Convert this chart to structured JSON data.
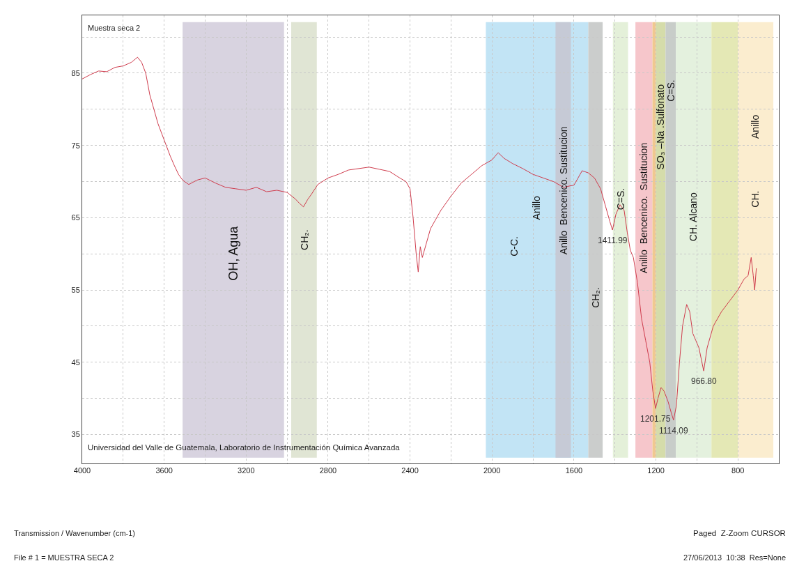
{
  "chart_data": {
    "type": "line",
    "x": [
      4000,
      3960,
      3920,
      3880,
      3840,
      3800,
      3760,
      3730,
      3710,
      3690,
      3670,
      3650,
      3630,
      3610,
      3590,
      3570,
      3550,
      3530,
      3510,
      3480,
      3440,
      3400,
      3350,
      3300,
      3250,
      3200,
      3150,
      3100,
      3050,
      3000,
      2960,
      2940,
      2920,
      2900,
      2880,
      2850,
      2800,
      2750,
      2700,
      2650,
      2600,
      2550,
      2500,
      2450,
      2420,
      2400,
      2385,
      2370,
      2360,
      2350,
      2340,
      2320,
      2300,
      2250,
      2200,
      2150,
      2100,
      2050,
      2000,
      1970,
      1940,
      1900,
      1850,
      1800,
      1750,
      1700,
      1650,
      1620,
      1600,
      1580,
      1560,
      1530,
      1500,
      1470,
      1445,
      1425,
      1411.99,
      1395,
      1375,
      1355,
      1340,
      1325,
      1310,
      1290,
      1270,
      1250,
      1230,
      1215,
      1201.75,
      1190,
      1175,
      1160,
      1140,
      1125,
      1114.09,
      1100,
      1085,
      1070,
      1050,
      1035,
      1020,
      1005,
      990,
      966.8,
      950,
      920,
      880,
      840,
      800,
      770,
      750,
      735,
      725,
      718,
      710
    ],
    "series": [
      {
        "color": "#cf3b4c",
        "values": [
          84.2,
          84.8,
          85.3,
          85.2,
          85.8,
          86,
          86.5,
          87.2,
          86.5,
          85,
          82,
          80,
          78,
          76.5,
          75,
          73.5,
          72.2,
          71,
          70.2,
          69.6,
          70.2,
          70.5,
          69.8,
          69.2,
          69,
          68.8,
          69.2,
          68.6,
          68.8,
          68.5,
          67.6,
          67,
          66.5,
          67.5,
          68.3,
          69.6,
          70.5,
          71,
          71.6,
          71.8,
          72,
          71.7,
          71.4,
          70.5,
          70,
          69,
          65,
          60,
          57.5,
          61,
          59.5,
          61.5,
          63.5,
          66,
          68,
          69.8,
          71,
          72.2,
          73,
          74,
          73.2,
          72.5,
          71.8,
          71,
          70.5,
          70,
          69.2,
          69.4,
          69.5,
          70.5,
          71.5,
          71.2,
          70.5,
          69,
          66.5,
          64.5,
          63.3,
          65.5,
          66.8,
          66,
          63,
          60.5,
          59.5,
          56,
          51,
          48,
          45,
          41,
          38.6,
          40,
          41.5,
          41,
          39.5,
          38,
          37,
          39,
          45,
          50,
          53,
          52,
          49,
          48,
          47,
          43.8,
          47,
          50,
          52,
          53.5,
          55,
          56.5,
          57,
          59.5,
          57,
          55,
          58
        ]
      }
    ],
    "xlim": [
      4000,
      600
    ],
    "ylim": [
      31,
      93
    ],
    "xticks": [
      4000,
      {
        "value": 3800,
        "label": null
      },
      3600,
      {
        "value": 3400,
        "label": null
      },
      3200,
      {
        "value": 3000,
        "label": null
      },
      2800,
      {
        "value": 2600,
        "label": null
      },
      2400,
      {
        "value": 2200,
        "label": null
      },
      2000,
      {
        "value": 1800,
        "label": null
      },
      1600,
      {
        "value": 1400,
        "label": null
      },
      1200,
      {
        "value": 1000,
        "label": null
      },
      800,
      {
        "value": 600,
        "label": null
      }
    ],
    "yticks": [
      35,
      {
        "value": 40,
        "label": null
      },
      45,
      {
        "value": 50,
        "label": null
      },
      55,
      {
        "value": 60,
        "label": null
      },
      65,
      {
        "value": 70,
        "label": null
      },
      75,
      {
        "value": 80,
        "label": null
      },
      85,
      {
        "value": 90,
        "label": null
      }
    ],
    "grid": true,
    "bands": [
      {
        "axis": "x",
        "from": 3510,
        "to": 3015,
        "label": "OH, Agua",
        "color": "#d8d3e0"
      },
      {
        "axis": "x",
        "from": 2980,
        "to": 2855,
        "label": "CH₂.",
        "color": "#e0e5d4"
      },
      {
        "axis": "x",
        "from": 2030,
        "to": 1530,
        "label": "Anillo",
        "color": "#c2e4f5"
      },
      {
        "axis": "x",
        "from": 1690,
        "to": 1615,
        "label": "Anillo  Bencenico. Sustitucion",
        "color": "#c6cad6"
      },
      {
        "axis": "x",
        "from": 1530,
        "to": 1460,
        "label": "CH₂.",
        "color": "#cbcdcc"
      },
      {
        "axis": "x",
        "from": 1410,
        "to": 1336,
        "label": "C=S.",
        "color": "#e4f0d9"
      },
      {
        "axis": "x",
        "from": 1300,
        "to": 1217,
        "label": "Anillo  Bencenico.  Sustitucion",
        "color": "#f6c6cb"
      },
      {
        "axis": "x",
        "from": 1217,
        "to": 1200,
        "color": "#f0c890"
      },
      {
        "axis": "x",
        "from": 1200,
        "to": 1153,
        "label": "SO₃ –Na .Sulfonato",
        "color": "#d5dcaa"
      },
      {
        "axis": "x",
        "from": 1153,
        "to": 1102,
        "label": "C=S.",
        "color": "#c8cdc9"
      },
      {
        "axis": "x",
        "from": 1102,
        "to": 929,
        "label": "CH. Alcano",
        "color": "#e4f1de"
      },
      {
        "axis": "x",
        "from": 929,
        "to": 800,
        "color": "#e4e8b5"
      },
      {
        "axis": "x",
        "from": 800,
        "to": 627,
        "label": "Anillo",
        "color": "#fbedcf"
      }
    ],
    "annotations": [
      "Muestra seca 2",
      "Universidad del Valle de Guatemala, Laboratorio de Instrumentación Química Avanzada",
      "Transmission / Wavenumber (cm-1)",
      "Paged  Z-Zoom CURSOR",
      "File # 1 = MUESTRA SECA 2",
      "27/06/2013  10:38  Res=None",
      "C-C.",
      "CH.",
      {
        "text": "1411.99",
        "x": 1411.99,
        "y": 63.3
      },
      {
        "text": "1201.75",
        "x": 1201.75,
        "y": 38.6
      },
      {
        "text": "1114.09",
        "x": 1114.09,
        "y": 37
      },
      {
        "text": "966.80",
        "x": 966.8,
        "y": 43.8
      }
    ]
  }
}
